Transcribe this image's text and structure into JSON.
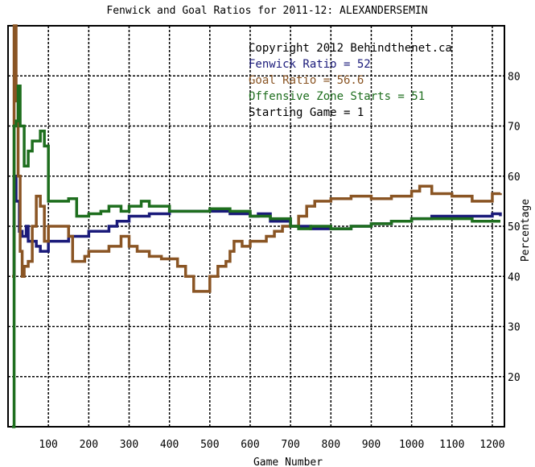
{
  "chart_data": {
    "type": "line",
    "title": "Fenwick and Goal Ratios for 2011-12: ALEXANDERSEMIN",
    "xlabel": "Game Number",
    "ylabel": "Percentage",
    "xlim": [
      0,
      1230
    ],
    "ylim": [
      10,
      90
    ],
    "x_ticks": [
      100,
      200,
      300,
      400,
      500,
      600,
      700,
      800,
      900,
      1000,
      1100,
      1200
    ],
    "y_ticks": [
      20,
      30,
      40,
      50,
      60,
      70,
      80
    ],
    "grid": true,
    "legend_position": "top-right",
    "annotations": [
      {
        "text": "Copyright 2012 Behindthenet.ca",
        "color": "#000000"
      },
      {
        "text": "Fenwick Ratio = 52",
        "color": "#1a1a7a"
      },
      {
        "text": "Goal Ratio = 56.6",
        "color": "#8a5524"
      },
      {
        "text": "Offensive Zone Starts = 51",
        "color": "#1e6e1e"
      },
      {
        "text": "Starting Game = 1",
        "color": "#000000"
      }
    ],
    "series": [
      {
        "name": "Fenwick Ratio",
        "color": "#1a1a7a",
        "x": [
          10,
          15,
          20,
          28,
          35,
          45,
          50,
          70,
          80,
          90,
          100,
          130,
          150,
          170,
          200,
          250,
          270,
          290,
          300,
          320,
          350,
          400,
          450,
          500,
          550,
          600,
          620,
          650,
          700,
          750,
          800,
          850,
          900,
          950,
          1000,
          1050,
          1100,
          1150,
          1200,
          1220
        ],
        "y": [
          40,
          60,
          55,
          49,
          48,
          50,
          47,
          46,
          45,
          45,
          47,
          47,
          48,
          48,
          49,
          50,
          51,
          51,
          52,
          52,
          52.5,
          53,
          53,
          53,
          52.5,
          52,
          52.5,
          51,
          50,
          49.5,
          49.5,
          50,
          50.5,
          51,
          51.5,
          52,
          52,
          52,
          52.5,
          52
        ]
      },
      {
        "name": "Goal Ratio",
        "color": "#8a5524",
        "x": [
          10,
          15,
          20,
          25,
          30,
          35,
          40,
          50,
          60,
          70,
          80,
          90,
          100,
          130,
          150,
          160,
          170,
          190,
          200,
          220,
          250,
          270,
          280,
          300,
          320,
          350,
          380,
          400,
          420,
          440,
          460,
          480,
          500,
          520,
          540,
          550,
          560,
          580,
          600,
          620,
          640,
          660,
          680,
          700,
          720,
          740,
          760,
          800,
          820,
          850,
          900,
          950,
          1000,
          1020,
          1050,
          1100,
          1150,
          1200,
          1220
        ],
        "y": [
          40,
          90,
          75,
          60,
          45,
          40,
          42,
          43,
          50,
          56,
          54,
          47,
          50,
          50,
          48,
          43,
          43,
          44,
          45,
          45,
          46,
          46,
          48,
          46,
          45,
          44,
          43.5,
          43.5,
          42,
          40,
          37,
          37,
          40,
          42,
          43,
          45,
          47,
          46,
          47,
          47,
          48,
          49,
          50,
          50,
          52,
          54,
          55,
          55.5,
          55.5,
          56,
          55.5,
          56,
          57,
          58,
          56.5,
          56,
          55,
          56.5,
          56.6
        ]
      },
      {
        "name": "Offensive Zone Starts",
        "color": "#1e6e1e",
        "x": [
          10,
          15,
          20,
          25,
          30,
          40,
          50,
          60,
          80,
          90,
          100,
          130,
          150,
          170,
          200,
          230,
          250,
          280,
          300,
          330,
          350,
          400,
          450,
          500,
          550,
          600,
          650,
          700,
          720,
          750,
          800,
          850,
          900,
          950,
          1000,
          1050,
          1100,
          1150,
          1200,
          1220
        ],
        "y": [
          10,
          70,
          71,
          78,
          70,
          62,
          65,
          67,
          69,
          66,
          55,
          55,
          55.5,
          52,
          52.5,
          53,
          54,
          53,
          54,
          55,
          54,
          53,
          53,
          53.5,
          53,
          52,
          51.5,
          50,
          49.5,
          50,
          49.5,
          50,
          50.5,
          51,
          51.5,
          51.5,
          51.5,
          51,
          51,
          51
        ]
      }
    ]
  }
}
